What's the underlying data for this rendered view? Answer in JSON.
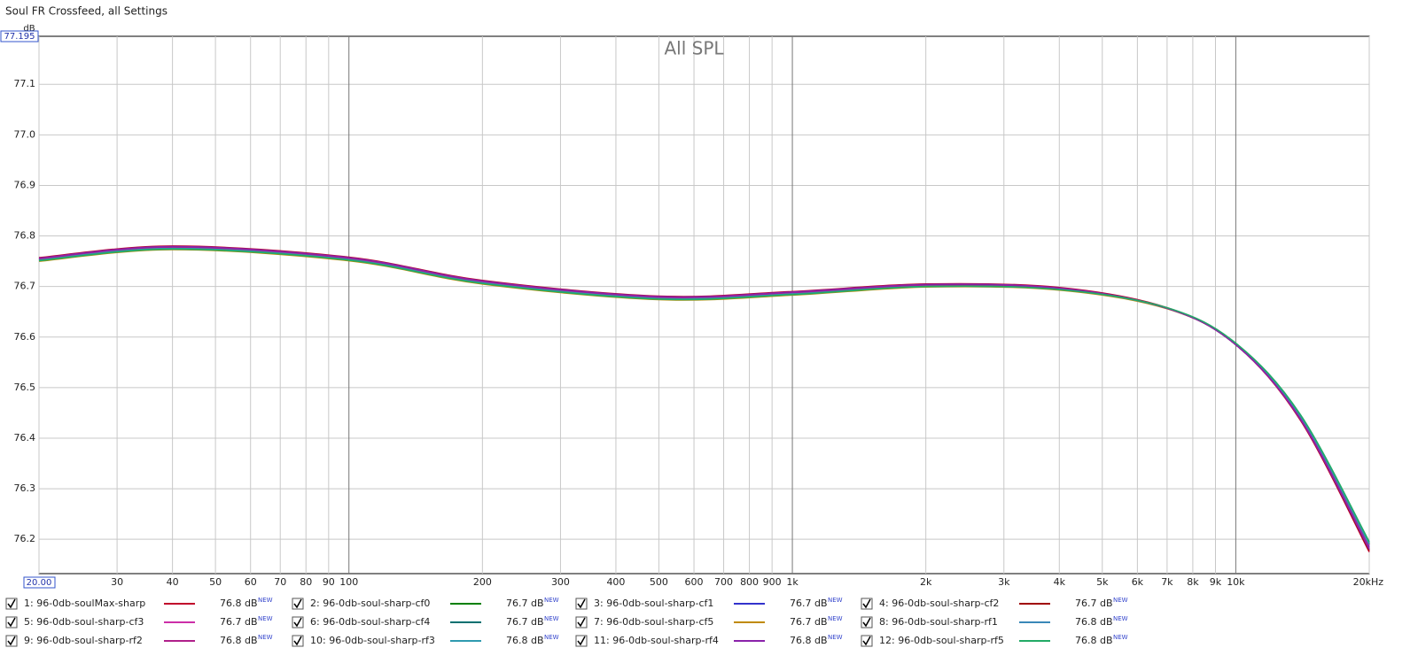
{
  "window_title": "Soul FR Crossfeed, all Settings",
  "chart_data": {
    "type": "line",
    "title": "All SPL",
    "y_label": "dB",
    "log_x": true,
    "grid": true,
    "x": [
      20,
      40,
      100,
      200,
      500,
      1000,
      2000,
      4000,
      7000,
      10000,
      14000,
      20000
    ],
    "xlim": [
      20,
      20000
    ],
    "xticks": [
      {
        "value": 20,
        "label": "20.00"
      },
      30,
      40,
      50,
      60,
      70,
      80,
      90,
      100,
      200,
      300,
      400,
      500,
      600,
      700,
      800,
      900,
      {
        "value": 1000,
        "label": "1k"
      },
      {
        "value": 2000,
        "label": "2k"
      },
      {
        "value": 3000,
        "label": "3k"
      },
      {
        "value": 4000,
        "label": "4k"
      },
      {
        "value": 5000,
        "label": "5k"
      },
      {
        "value": 6000,
        "label": "6k"
      },
      {
        "value": 7000,
        "label": "7k"
      },
      {
        "value": 8000,
        "label": "8k"
      },
      {
        "value": 9000,
        "label": "9k"
      },
      {
        "value": 10000,
        "label": "10k"
      },
      {
        "value": 20000,
        "label": "20kHz"
      }
    ],
    "ylim": [
      76.132,
      77.195
    ],
    "yticks": [
      76.2,
      76.3,
      76.4,
      76.5,
      76.6,
      76.7,
      76.8,
      76.9,
      {
        "value": 77.0,
        "label": "77.0"
      },
      77.1,
      77.195
    ],
    "series": [
      {
        "name": "1: 96-0db-soulMax-sharp",
        "color": "#c0002a",
        "readout": "76.8 dB",
        "badge": "NEW",
        "values": [
          76.757,
          76.78,
          76.758,
          76.712,
          76.681,
          76.69,
          76.705,
          76.698,
          76.658,
          76.585,
          76.435,
          76.175
        ]
      },
      {
        "name": "2: 96-0db-soul-sharp-cf0",
        "color": "#008000",
        "readout": "76.7 dB",
        "badge": "NEW",
        "values": [
          76.754,
          76.777,
          76.755,
          76.709,
          76.678,
          76.687,
          76.702,
          76.695,
          76.657,
          76.585,
          76.44,
          76.19
        ]
      },
      {
        "name": "3: 96-0db-soul-sharp-cf1",
        "color": "#3333cc",
        "readout": "76.7 dB",
        "badge": "NEW",
        "values": [
          76.755,
          76.778,
          76.756,
          76.71,
          76.679,
          76.688,
          76.703,
          76.696,
          76.657,
          76.585,
          76.44,
          76.185
        ]
      },
      {
        "name": "4: 96-0db-soul-sharp-cf2",
        "color": "#a00000",
        "readout": "76.7 dB",
        "badge": "NEW",
        "values": [
          76.756,
          76.779,
          76.757,
          76.711,
          76.68,
          76.689,
          76.704,
          76.697,
          76.657,
          76.585,
          76.437,
          76.178
        ]
      },
      {
        "name": "5: 96-0db-soul-sharp-cf3",
        "color": "#cc2fa8",
        "readout": "76.7 dB",
        "badge": "NEW",
        "values": [
          76.752,
          76.775,
          76.753,
          76.707,
          76.676,
          76.685,
          76.7,
          76.694,
          76.657,
          76.586,
          76.441,
          76.188
        ]
      },
      {
        "name": "6: 96-0db-soul-sharp-cf4",
        "color": "#007070",
        "readout": "76.7 dB",
        "badge": "NEW",
        "values": [
          76.754,
          76.777,
          76.755,
          76.709,
          76.678,
          76.687,
          76.702,
          76.695,
          76.657,
          76.586,
          76.442,
          76.19
        ]
      },
      {
        "name": "7: 96-0db-soul-sharp-cf5",
        "color": "#c08a00",
        "readout": "76.7 dB",
        "badge": "NEW",
        "values": [
          76.75,
          76.773,
          76.751,
          76.705,
          76.674,
          76.683,
          76.699,
          76.693,
          76.656,
          76.586,
          76.443,
          76.192
        ]
      },
      {
        "name": "8: 96-0db-soul-sharp-rf1",
        "color": "#3a88b8",
        "readout": "76.8 dB",
        "badge": "NEW",
        "values": [
          76.753,
          76.776,
          76.754,
          76.708,
          76.677,
          76.686,
          76.701,
          76.695,
          76.657,
          76.586,
          76.442,
          76.19
        ]
      },
      {
        "name": "9: 96-0db-soul-sharp-rf2",
        "color": "#b0208a",
        "readout": "76.8 dB",
        "badge": "NEW",
        "values": [
          76.755,
          76.778,
          76.756,
          76.71,
          76.679,
          76.688,
          76.703,
          76.696,
          76.657,
          76.585,
          76.438,
          76.182
        ]
      },
      {
        "name": "10: 96-0db-soul-sharp-rf3",
        "color": "#2f9ab0",
        "readout": "76.8 dB",
        "badge": "NEW",
        "values": [
          76.752,
          76.775,
          76.753,
          76.707,
          76.676,
          76.685,
          76.7,
          76.694,
          76.657,
          76.587,
          76.444,
          76.193
        ]
      },
      {
        "name": "11: 96-0db-soul-sharp-rf4",
        "color": "#8a22aa",
        "readout": "76.8 dB",
        "badge": "NEW",
        "values": [
          76.756,
          76.779,
          76.757,
          76.711,
          76.68,
          76.689,
          76.704,
          76.697,
          76.657,
          76.585,
          76.437,
          76.18
        ]
      },
      {
        "name": "12: 96-0db-soul-sharp-rf5",
        "color": "#22aa66",
        "readout": "76.8 dB",
        "badge": "NEW",
        "values": [
          76.751,
          76.774,
          76.752,
          76.706,
          76.675,
          76.684,
          76.7,
          76.694,
          76.658,
          76.588,
          76.446,
          76.195
        ]
      }
    ]
  }
}
